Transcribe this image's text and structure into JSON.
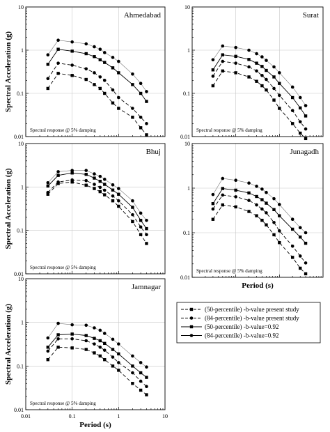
{
  "chart_data": [
    {
      "type": "line",
      "title": "Ahmedabad",
      "annotation": "Spectral response @ 5% damping",
      "ylabel": "Spectral Acceleration (g)",
      "xlabel": "",
      "x_scale": "log",
      "y_scale": "log",
      "xlim": [
        0.01,
        10
      ],
      "ylim": [
        0.01,
        10
      ],
      "x_ticks": [],
      "y_ticks": [
        "0.01",
        "0.1",
        "1",
        "10"
      ],
      "grid": true,
      "x": [
        0.03,
        0.05,
        0.1,
        0.2,
        0.3,
        0.4,
        0.5,
        0.75,
        1,
        2,
        3,
        4
      ],
      "series": [
        {
          "name": "(50-percentile) -b-value present study",
          "marker": "square",
          "style": "dashed",
          "values": [
            0.13,
            0.29,
            0.26,
            0.21,
            0.16,
            0.13,
            0.1,
            0.06,
            0.045,
            0.028,
            0.016,
            0.011
          ]
        },
        {
          "name": "(84-percentile) -b-value present study",
          "marker": "circle",
          "style": "dashed",
          "values": [
            0.22,
            0.5,
            0.45,
            0.37,
            0.3,
            0.24,
            0.2,
            0.12,
            0.08,
            0.045,
            0.028,
            0.02
          ]
        },
        {
          "name": "(50-percentile) -b-value=0.92",
          "marker": "square",
          "style": "solid",
          "values": [
            0.47,
            1.05,
            0.95,
            0.83,
            0.71,
            0.6,
            0.52,
            0.39,
            0.3,
            0.16,
            0.1,
            0.065
          ]
        },
        {
          "name": "(84-percentile) -b-value=0.92",
          "marker": "circle",
          "style": "solid",
          "values": [
            0.78,
            1.7,
            1.55,
            1.4,
            1.2,
            1.05,
            0.88,
            0.68,
            0.55,
            0.28,
            0.17,
            0.11
          ]
        }
      ]
    },
    {
      "type": "line",
      "title": "Surat",
      "annotation": "Spectral response @ 5% damping",
      "ylabel": "",
      "xlabel": "",
      "x_scale": "log",
      "y_scale": "log",
      "xlim": [
        0.01,
        10
      ],
      "ylim": [
        0.01,
        10
      ],
      "x_ticks": [],
      "y_ticks": [
        "0.01",
        "0.1",
        "1",
        "10"
      ],
      "grid": true,
      "x": [
        0.03,
        0.05,
        0.1,
        0.2,
        0.3,
        0.4,
        0.5,
        0.75,
        1,
        2,
        3,
        4
      ],
      "series": [
        {
          "name": "(50-percentile) -b-value present study",
          "marker": "square",
          "style": "dashed",
          "values": [
            0.15,
            0.33,
            0.3,
            0.24,
            0.19,
            0.15,
            0.12,
            0.07,
            0.045,
            0.02,
            0.012,
            0.009
          ]
        },
        {
          "name": "(84-percentile) -b-value present study",
          "marker": "circle",
          "style": "dashed",
          "values": [
            0.25,
            0.55,
            0.5,
            0.41,
            0.33,
            0.26,
            0.21,
            0.13,
            0.09,
            0.04,
            0.022,
            0.015
          ]
        },
        {
          "name": "(50-percentile) -b-value=0.92",
          "marker": "square",
          "style": "solid",
          "values": [
            0.35,
            0.78,
            0.72,
            0.61,
            0.5,
            0.42,
            0.34,
            0.24,
            0.17,
            0.08,
            0.046,
            0.03
          ]
        },
        {
          "name": "(84-percentile) -b-value=0.92",
          "marker": "circle",
          "style": "solid",
          "values": [
            0.6,
            1.25,
            1.15,
            1.0,
            0.83,
            0.7,
            0.58,
            0.41,
            0.3,
            0.14,
            0.08,
            0.052
          ]
        }
      ]
    },
    {
      "type": "line",
      "title": "Bhuj",
      "annotation": "Spectral response @ 5% damping",
      "ylabel": "Spectral Acceleration (g)",
      "xlabel": "",
      "x_scale": "log",
      "y_scale": "log",
      "xlim": [
        0.01,
        10
      ],
      "ylim": [
        0.01,
        10
      ],
      "x_ticks": [],
      "y_ticks": [
        "0.01",
        "0.1",
        "1",
        "10"
      ],
      "grid": true,
      "x": [
        0.03,
        0.05,
        0.1,
        0.2,
        0.3,
        0.4,
        0.5,
        0.75,
        1,
        2,
        3,
        4
      ],
      "series": [
        {
          "name": "(50-percentile) -b-value present study",
          "marker": "square",
          "style": "dashed",
          "values": [
            0.68,
            1.2,
            1.3,
            1.1,
            0.92,
            0.78,
            0.66,
            0.48,
            0.36,
            0.16,
            0.08,
            0.05
          ]
        },
        {
          "name": "(84-percentile) -b-value present study",
          "marker": "circle",
          "style": "dashed",
          "values": [
            0.75,
            1.3,
            1.45,
            1.4,
            1.15,
            0.98,
            0.84,
            0.62,
            0.48,
            0.23,
            0.12,
            0.08
          ]
        },
        {
          "name": "(50-percentile) -b-value=0.92",
          "marker": "square",
          "style": "solid",
          "values": [
            1.05,
            1.85,
            2.1,
            1.95,
            1.6,
            1.35,
            1.15,
            0.85,
            0.68,
            0.34,
            0.17,
            0.11
          ]
        },
        {
          "name": "(84-percentile) -b-value=0.92",
          "marker": "circle",
          "style": "solid",
          "values": [
            1.25,
            2.25,
            2.4,
            2.4,
            2.0,
            1.75,
            1.5,
            1.12,
            0.92,
            0.48,
            0.25,
            0.17
          ]
        }
      ]
    },
    {
      "type": "line",
      "title": "Junagadh",
      "annotation": "Spectral response @ 5% damping",
      "ylabel": "",
      "xlabel": "Period (s)",
      "x_scale": "log",
      "y_scale": "log",
      "xlim": [
        0.01,
        10
      ],
      "ylim": [
        0.01,
        10
      ],
      "x_ticks": [],
      "y_ticks": [
        "0.01",
        "0.1",
        "1",
        "10"
      ],
      "grid": true,
      "x": [
        0.03,
        0.05,
        0.1,
        0.2,
        0.3,
        0.4,
        0.5,
        0.75,
        1,
        2,
        3,
        4
      ],
      "series": [
        {
          "name": "(50-percentile) -b-value present study",
          "marker": "square",
          "style": "dashed",
          "values": [
            0.2,
            0.42,
            0.38,
            0.3,
            0.24,
            0.19,
            0.15,
            0.09,
            0.06,
            0.028,
            0.016,
            0.012
          ]
        },
        {
          "name": "(84-percentile) -b-value present study",
          "marker": "circle",
          "style": "dashed",
          "values": [
            0.34,
            0.7,
            0.64,
            0.53,
            0.42,
            0.34,
            0.28,
            0.17,
            0.11,
            0.05,
            0.03,
            0.021
          ]
        },
        {
          "name": "(50-percentile) -b-value=0.92",
          "marker": "square",
          "style": "solid",
          "values": [
            0.45,
            0.98,
            0.9,
            0.78,
            0.65,
            0.55,
            0.46,
            0.33,
            0.24,
            0.12,
            0.08,
            0.058
          ]
        },
        {
          "name": "(84-percentile) -b-value=0.92",
          "marker": "circle",
          "style": "solid",
          "values": [
            0.72,
            1.65,
            1.5,
            1.3,
            1.1,
            0.95,
            0.8,
            0.58,
            0.43,
            0.2,
            0.13,
            0.1
          ]
        }
      ]
    },
    {
      "type": "line",
      "title": "Jamnagar",
      "annotation": "Spectral response @ 5% damping",
      "ylabel": "Spectral Acceleration (g)",
      "xlabel": "Period (s)",
      "x_scale": "log",
      "y_scale": "log",
      "xlim": [
        0.01,
        10
      ],
      "ylim": [
        0.01,
        10
      ],
      "x_ticks": [
        "0.01",
        "0.1",
        "1",
        "10"
      ],
      "y_ticks": [
        "0.01",
        "0.1",
        "1",
        "10"
      ],
      "grid": true,
      "x": [
        0.03,
        0.05,
        0.1,
        0.2,
        0.3,
        0.4,
        0.5,
        0.75,
        1,
        2,
        3,
        4
      ],
      "series": [
        {
          "name": "(50-percentile) -b-value present study",
          "marker": "square",
          "style": "dashed",
          "values": [
            0.14,
            0.27,
            0.26,
            0.24,
            0.2,
            0.17,
            0.14,
            0.1,
            0.08,
            0.04,
            0.028,
            0.022
          ]
        },
        {
          "name": "(84-percentile) -b-value present study",
          "marker": "circle",
          "style": "dashed",
          "values": [
            0.22,
            0.42,
            0.42,
            0.38,
            0.32,
            0.27,
            0.23,
            0.16,
            0.12,
            0.07,
            0.045,
            0.034
          ]
        },
        {
          "name": "(50-percentile) -b-value=0.92",
          "marker": "square",
          "style": "solid",
          "values": [
            0.27,
            0.52,
            0.54,
            0.5,
            0.43,
            0.38,
            0.33,
            0.24,
            0.19,
            0.1,
            0.07,
            0.055
          ]
        },
        {
          "name": "(84-percentile) -b-value=0.92",
          "marker": "circle",
          "style": "solid",
          "values": [
            0.44,
            0.95,
            0.88,
            0.86,
            0.75,
            0.66,
            0.56,
            0.41,
            0.32,
            0.17,
            0.12,
            0.095
          ]
        }
      ]
    }
  ],
  "legend": {
    "placement": "bottom-right",
    "entries": [
      "(50-percentile) -b-value present study",
      "(84-percentile) -b-value present study",
      "(50-percentile) -b-value=0.92",
      "(84-percentile) -b-value=0.92"
    ]
  }
}
